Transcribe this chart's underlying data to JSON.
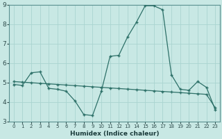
{
  "xlabel": "Humidex (Indice chaleur)",
  "background_color": "#c8e8e4",
  "grid_color": "#aad4d0",
  "line_color": "#2d7068",
  "xlim": [
    -0.5,
    23.5
  ],
  "ylim": [
    3,
    9
  ],
  "xticks": [
    0,
    1,
    2,
    3,
    4,
    5,
    6,
    7,
    8,
    9,
    10,
    11,
    12,
    13,
    14,
    15,
    16,
    17,
    18,
    19,
    20,
    21,
    22,
    23
  ],
  "yticks": [
    3,
    4,
    5,
    6,
    7,
    8,
    9
  ],
  "curve1_x": [
    0,
    1,
    2,
    3,
    4,
    5,
    6,
    7,
    8,
    9,
    10,
    11,
    12,
    13,
    14,
    15,
    16,
    17,
    18,
    19,
    20,
    21,
    22,
    23
  ],
  "curve1_y": [
    4.9,
    4.85,
    5.5,
    5.55,
    4.7,
    4.65,
    4.55,
    4.05,
    3.35,
    3.3,
    4.55,
    6.35,
    6.4,
    7.35,
    8.1,
    8.95,
    8.95,
    8.75,
    5.4,
    4.65,
    4.6,
    5.05,
    4.75,
    3.6
  ],
  "curve2_x": [
    0,
    1,
    2,
    3,
    4,
    5,
    6,
    7,
    8,
    9,
    10,
    11,
    12,
    13,
    14,
    15,
    16,
    17,
    18,
    19,
    20,
    21,
    22,
    23
  ],
  "curve2_y": [
    5.05,
    5.02,
    4.99,
    4.96,
    4.93,
    4.9,
    4.87,
    4.84,
    4.81,
    4.78,
    4.75,
    4.72,
    4.69,
    4.66,
    4.63,
    4.6,
    4.57,
    4.54,
    4.51,
    4.48,
    4.45,
    4.42,
    4.39,
    3.7
  ]
}
